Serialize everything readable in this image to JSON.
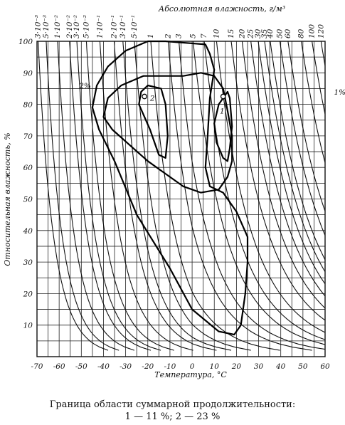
{
  "chart_data": {
    "type": "line",
    "title": "",
    "xlabel": "Температура, °C",
    "ylabel": "Относительная влажность, %",
    "top_axis_label": "Абсолютная влажность, г/м³",
    "xlim": [
      -70,
      60
    ],
    "ylim": [
      0,
      100
    ],
    "x_ticks": [
      "-70",
      "-60",
      "-50",
      "-40",
      "-30",
      "-20",
      "-10",
      "0",
      "10",
      "20",
      "30",
      "40",
      "50",
      "60"
    ],
    "y_ticks": [
      "10",
      "20",
      "30",
      "40",
      "50",
      "60",
      "70",
      "80",
      "90",
      "100"
    ],
    "top_ticks": [
      {
        "label": "3·10⁻³",
        "value": 0.003
      },
      {
        "label": "5·10⁻³",
        "value": 0.005
      },
      {
        "label": "1·10⁻²",
        "value": 0.01
      },
      {
        "label": "2·10⁻²",
        "value": 0.02
      },
      {
        "label": "3·10⁻²",
        "value": 0.03
      },
      {
        "label": "5·10⁻²",
        "value": 0.05
      },
      {
        "label": "1·10⁻¹",
        "value": 0.1
      },
      {
        "label": "2·10⁻¹",
        "value": 0.2
      },
      {
        "label": "3·10⁻¹",
        "value": 0.3
      },
      {
        "label": "5·10⁻¹",
        "value": 0.5
      },
      {
        "label": "1",
        "value": 1
      },
      {
        "label": "2",
        "value": 2
      },
      {
        "label": "3",
        "value": 3
      },
      {
        "label": "5",
        "value": 5
      },
      {
        "label": "7",
        "value": 7
      },
      {
        "label": "10",
        "value": 10
      },
      {
        "label": "15",
        "value": 15
      },
      {
        "label": "20",
        "value": 20
      },
      {
        "label": "25",
        "value": 25
      },
      {
        "label": "30",
        "value": 30
      },
      {
        "label": "35",
        "value": 35
      },
      {
        "label": "40",
        "value": 40
      },
      {
        "label": "50",
        "value": 50
      },
      {
        "label": "60",
        "value": 60
      },
      {
        "label": "80",
        "value": 80
      },
      {
        "label": "100",
        "value": 100
      },
      {
        "label": "120",
        "value": 120
      }
    ],
    "contours": [
      {
        "name": "1%",
        "points": [
          [
            -20,
            100
          ],
          [
            -12,
            100
          ],
          [
            6,
            99
          ],
          [
            8,
            96
          ],
          [
            10,
            91
          ],
          [
            8,
            82
          ],
          [
            7,
            70
          ],
          [
            6,
            60
          ],
          [
            8,
            54
          ],
          [
            14,
            52
          ],
          [
            20,
            46
          ],
          [
            25,
            38
          ],
          [
            25,
            30
          ],
          [
            24,
            20
          ],
          [
            22,
            10
          ],
          [
            19,
            7
          ],
          [
            12,
            8
          ],
          [
            0,
            15
          ],
          [
            -10,
            28
          ],
          [
            -25,
            45
          ],
          [
            -35,
            62
          ],
          [
            -42,
            72
          ],
          [
            -45,
            79
          ],
          [
            -43,
            86
          ],
          [
            -38,
            92
          ],
          [
            -30,
            97
          ],
          [
            -20,
            100
          ]
        ]
      },
      {
        "name": "2%",
        "points": [
          [
            -40,
            76
          ],
          [
            -38,
            82
          ],
          [
            -32,
            86
          ],
          [
            -22,
            89
          ],
          [
            -12,
            89
          ],
          [
            -4,
            89
          ],
          [
            4,
            90
          ],
          [
            10,
            89
          ],
          [
            14,
            85
          ],
          [
            16,
            78
          ],
          [
            18,
            70
          ],
          [
            18,
            62
          ],
          [
            16,
            57
          ],
          [
            12,
            53
          ],
          [
            4,
            52
          ],
          [
            -4,
            54
          ],
          [
            -12,
            58
          ],
          [
            -20,
            62
          ],
          [
            -28,
            67
          ],
          [
            -36,
            72
          ],
          [
            -40,
            76
          ]
        ]
      },
      {
        "name": "1",
        "points": [
          [
            16,
            84
          ],
          [
            12,
            80
          ],
          [
            10,
            74
          ],
          [
            11,
            68
          ],
          [
            14,
            63
          ],
          [
            16,
            62
          ],
          [
            17,
            66
          ],
          [
            18,
            73
          ],
          [
            17,
            82
          ],
          [
            16,
            84
          ]
        ]
      },
      {
        "name": "2",
        "points": [
          [
            -23,
            84
          ],
          [
            -20,
            86
          ],
          [
            -14,
            85
          ],
          [
            -12,
            80
          ],
          [
            -11,
            70
          ],
          [
            -12,
            63
          ],
          [
            -15,
            64
          ],
          [
            -19,
            72
          ],
          [
            -24,
            80
          ],
          [
            -23,
            84
          ]
        ]
      }
    ],
    "annotations": [
      {
        "text": "2%",
        "x": -51.0,
        "y": 86.0
      },
      {
        "text": "1%",
        "x": 64.0,
        "y": 84.0
      },
      {
        "text": "2",
        "x": -19.0,
        "y": 82.0
      },
      {
        "text": "1",
        "x": 12.5,
        "y": 78.0
      }
    ]
  },
  "caption": {
    "line1": "Граница области суммарной продолжительности:",
    "line2": "1 — 11 %; 2 — 23 %"
  }
}
